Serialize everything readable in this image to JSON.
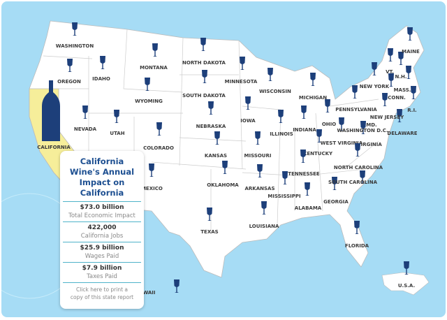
{
  "map": {
    "states": [
      "WASHINGTON",
      "OREGON",
      "IDAHO",
      "MONTANA",
      "NORTH DAKOTA",
      "MINNESOTA",
      "WISCONSIN",
      "MICHIGAN",
      "SOUTH DAKOTA",
      "WYOMING",
      "NEVADA",
      "UTAH",
      "IOWA",
      "NEBRASKA",
      "ILLINOIS",
      "INDIANA",
      "OHIO",
      "PENNSYLVANIA",
      "COLORADO",
      "KANSAS",
      "MISSOURI",
      "KENTUCKY",
      "WEST VIRGINIA",
      "VIRGINIA",
      "WASHINGTON D.C.",
      "MD.",
      "DELAWARE",
      "NEW JERSEY",
      "NEW YORK",
      "VT.",
      "N.H.",
      "MAINE",
      "MASS.",
      "CONN.",
      "R.I.",
      "NORTH CAROLINA",
      "TENNESSEE",
      "OKLAHOMA",
      "ARKANSAS",
      "MISSISSIPPI",
      "ALABAMA",
      "GEORGIA",
      "SOUTH CAROLINA",
      "TEXAS",
      "LOUISIANA",
      "FLORIDA",
      "NEW MEXICO",
      "HAWAII"
    ],
    "california": "CALIFORNIA",
    "usa": "U.S.A."
  },
  "card": {
    "title": "California Wine's Annual Impact on California",
    "stats": [
      {
        "value": "$73.0 billion",
        "label": "Total Economic Impact"
      },
      {
        "value": "422,000",
        "label": "California Jobs"
      },
      {
        "value": "$25.9 billion",
        "label": "Wages Paid"
      },
      {
        "value": "$7.9 billion",
        "label": "Taxes Paid"
      }
    ],
    "link": "Click here to print a copy of this state report"
  }
}
